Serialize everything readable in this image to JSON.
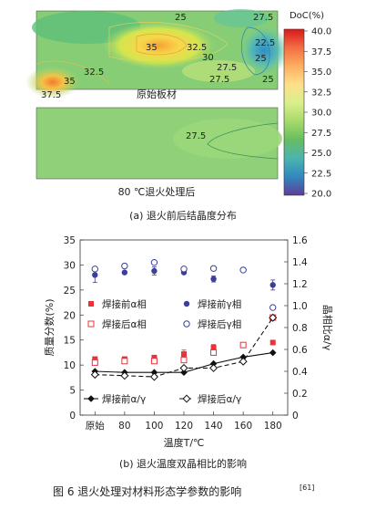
{
  "panel_a": {
    "top_map": {
      "bottom_label": "原始板材",
      "contour_labels": [
        "25",
        "27.5",
        "35",
        "32.5",
        "30",
        "27.5",
        "22.5",
        "25",
        "35",
        "32.5",
        "27.5",
        "25",
        "27.5",
        "37.5"
      ]
    },
    "bottom_map": {
      "bottom_label": "80 ℃退火处理后",
      "contour_labels": [
        "27.5"
      ]
    },
    "colorbar": {
      "title": "DoC(%)",
      "ticks": [
        "40.0",
        "37.5",
        "35.0",
        "32.5",
        "30.0",
        "27.5",
        "25.0",
        "22.5",
        "20.0"
      ],
      "colors": [
        "#d7191c",
        "#f46d43",
        "#fdae61",
        "#fee08b",
        "#d9ef8b",
        "#a6d96a",
        "#66bd63",
        "#4bb4b0",
        "#3288bd",
        "#5e3c99"
      ]
    },
    "caption": "(a) 退火前后结晶度分布"
  },
  "chart_data": {
    "type": "scatter",
    "categories": [
      "原始",
      "80",
      "100",
      "120",
      "140",
      "160",
      "180"
    ],
    "xlabel": "温度T/℃",
    "ylabel": "质量分数(%)",
    "y2label": "晶相比α/γ",
    "ylim": [
      0,
      35
    ],
    "y2lim": [
      0,
      1.6
    ],
    "y_ticks": [
      "0",
      "5",
      "10",
      "15",
      "20",
      "25",
      "30",
      "35"
    ],
    "y2_ticks": [
      "0",
      "0.2",
      "0.4",
      "0.6",
      "0.8",
      "1.0",
      "1.2",
      "1.4",
      "1.6"
    ],
    "series": [
      {
        "name": "焊接前α相",
        "axis": "left",
        "marker": "square-filled",
        "color": "#e8333a",
        "values": [
          11.2,
          11.2,
          11.5,
          12.2,
          13.5,
          14.0,
          14.5
        ],
        "errors": [
          0.4,
          0.3,
          0.3,
          0.8,
          0.6,
          0.4,
          0.4
        ]
      },
      {
        "name": "焊接前γ相",
        "axis": "left",
        "marker": "circle-filled",
        "color": "#3a3f9a",
        "values": [
          28.0,
          28.5,
          28.8,
          28.5,
          27.2,
          null,
          26.0
        ],
        "errors": [
          1.5,
          0.0,
          0.8,
          0.0,
          0.6,
          null,
          1.0
        ]
      },
      {
        "name": "焊接后α相",
        "axis": "left",
        "marker": "square-open",
        "color": "#e8333a",
        "values": [
          10.5,
          10.8,
          10.8,
          11.0,
          12.5,
          14.0,
          19.5
        ],
        "errors": [
          0,
          0,
          0,
          0,
          0,
          0,
          0
        ]
      },
      {
        "name": "焊接后γ相",
        "axis": "left",
        "marker": "circle-open",
        "color": "#3a3f9a",
        "values": [
          29.2,
          29.8,
          30.5,
          29.2,
          29.3,
          29.0,
          21.5
        ],
        "errors": [
          0,
          0,
          0,
          0,
          0,
          0,
          0
        ]
      },
      {
        "name": "焊接前α/γ",
        "axis": "right",
        "marker": "diamond-filled",
        "color": "#111111",
        "line": "solid",
        "values": [
          0.4,
          0.39,
          0.39,
          0.39,
          0.47,
          0.53,
          0.57
        ]
      },
      {
        "name": "焊接后α/γ",
        "axis": "right",
        "marker": "diamond-open",
        "color": "#111111",
        "line": "dashed",
        "values": [
          0.37,
          0.36,
          0.35,
          0.43,
          0.43,
          0.49,
          0.89
        ]
      }
    ],
    "legend": [
      "焊接前α相",
      "焊接前γ相",
      "焊接后α相",
      "焊接后γ相",
      "焊接前α/γ",
      "焊接后α/γ"
    ]
  },
  "panel_b_caption": "(b) 退火温度双晶相比的影响",
  "figure_caption": "图 6   退火处理对材料形态学参数的影响",
  "figure_ref": "[61]"
}
